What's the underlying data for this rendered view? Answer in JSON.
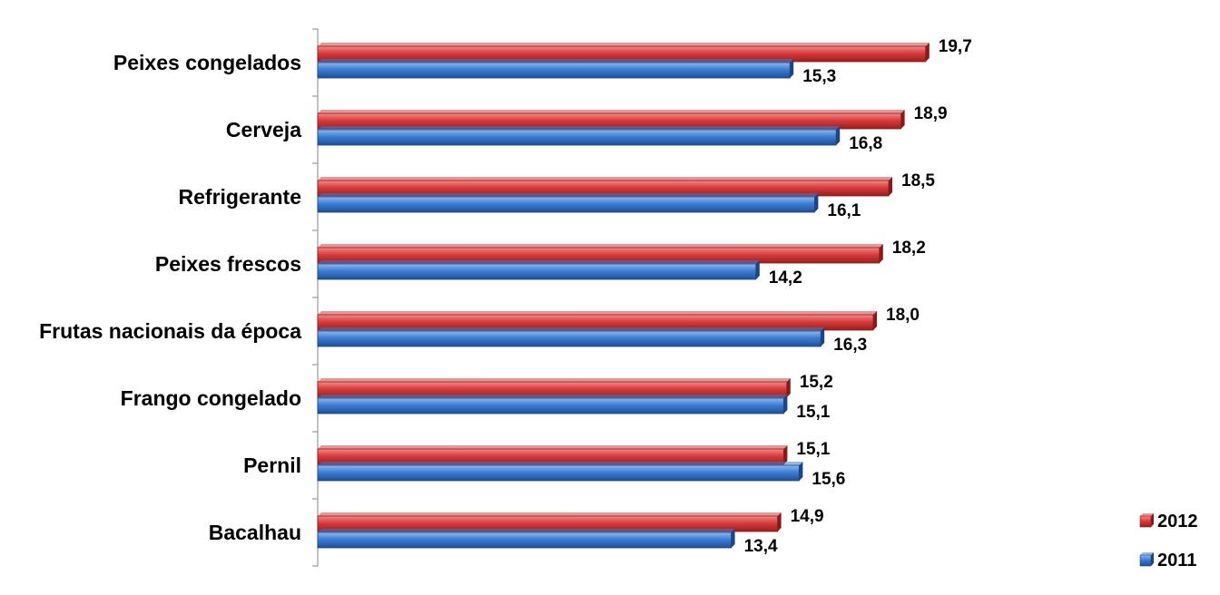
{
  "chart_data": {
    "type": "bar",
    "orientation": "horizontal",
    "categories": [
      "Peixes congelados",
      "Cerveja",
      "Refrigerante",
      "Peixes frescos",
      "Frutas nacionais da época",
      "Frango congelado",
      "Pernil",
      "Bacalhau"
    ],
    "series": [
      {
        "name": "2012",
        "color": "#d93c3c",
        "values": [
          19.7,
          18.9,
          18.5,
          18.2,
          18.0,
          15.2,
          15.1,
          14.9
        ],
        "labels": [
          "19,7",
          "18,9",
          "18,5",
          "18,2",
          "18,0",
          "15,2",
          "15,1",
          "14,9"
        ]
      },
      {
        "name": "2011",
        "color": "#3d7dd3",
        "values": [
          15.3,
          16.8,
          16.1,
          14.2,
          16.3,
          15.1,
          15.6,
          13.4
        ],
        "labels": [
          "15,3",
          "16,8",
          "16,1",
          "14,2",
          "16,3",
          "15,1",
          "15,6",
          "13,4"
        ]
      }
    ],
    "title": "",
    "xlabel": "",
    "ylabel": "",
    "xlim": [
      0,
      21.6
    ],
    "grid": false,
    "legend_position": "bottom-right"
  }
}
